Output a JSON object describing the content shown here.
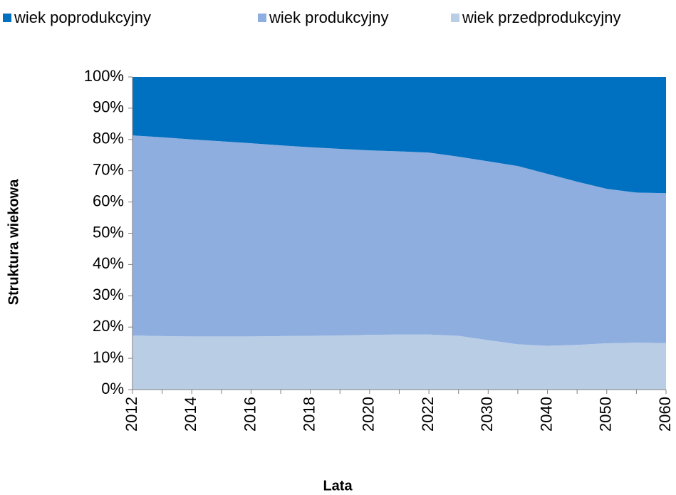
{
  "chart_data": {
    "type": "area",
    "stacked": true,
    "x_label": "Lata",
    "y_label": "Struktura wiekowa",
    "categories": [
      "2012",
      null,
      "2014",
      null,
      "2016",
      null,
      "2018",
      null,
      "2020",
      null,
      "2022",
      null,
      "2030",
      null,
      "2040",
      null,
      "2050",
      null,
      "2060"
    ],
    "series": [
      {
        "name": "wiek poprodukcyjny",
        "color": "#0070c0",
        "values": [
          18.7,
          19.3,
          20.0,
          20.6,
          21.2,
          21.9,
          22.5,
          23.0,
          23.5,
          23.8,
          24.2,
          25.5,
          27.0,
          28.5,
          31.0,
          33.5,
          35.8,
          37.0,
          37.2
        ]
      },
      {
        "name": "wiek produkcyjny",
        "color": "#8eaee0",
        "values": [
          64.0,
          63.6,
          63.0,
          62.4,
          61.8,
          61.0,
          60.3,
          59.7,
          59.0,
          58.6,
          58.2,
          57.3,
          57.2,
          57.0,
          55.0,
          52.2,
          49.4,
          48.0,
          47.9
        ]
      },
      {
        "name": "wiek przedprodukcyjny",
        "color": "#b9cde5",
        "values": [
          17.3,
          17.1,
          17.0,
          17.0,
          17.0,
          17.1,
          17.2,
          17.3,
          17.5,
          17.6,
          17.6,
          17.2,
          15.8,
          14.5,
          14.0,
          14.3,
          14.8,
          15.0,
          14.9
        ]
      }
    ],
    "ylim": [
      0,
      100
    ],
    "yticks": [
      {
        "value": 0,
        "label": "0%"
      },
      {
        "value": 10,
        "label": "10%"
      },
      {
        "value": 20,
        "label": "20%"
      },
      {
        "value": 30,
        "label": "30%"
      },
      {
        "value": 40,
        "label": "40%"
      },
      {
        "value": 50,
        "label": "50%"
      },
      {
        "value": 60,
        "label": "60%"
      },
      {
        "value": 70,
        "label": "70%"
      },
      {
        "value": 80,
        "label": "80%"
      },
      {
        "value": 90,
        "label": "90%"
      },
      {
        "value": 100,
        "label": "100%"
      }
    ],
    "legend": "top"
  }
}
